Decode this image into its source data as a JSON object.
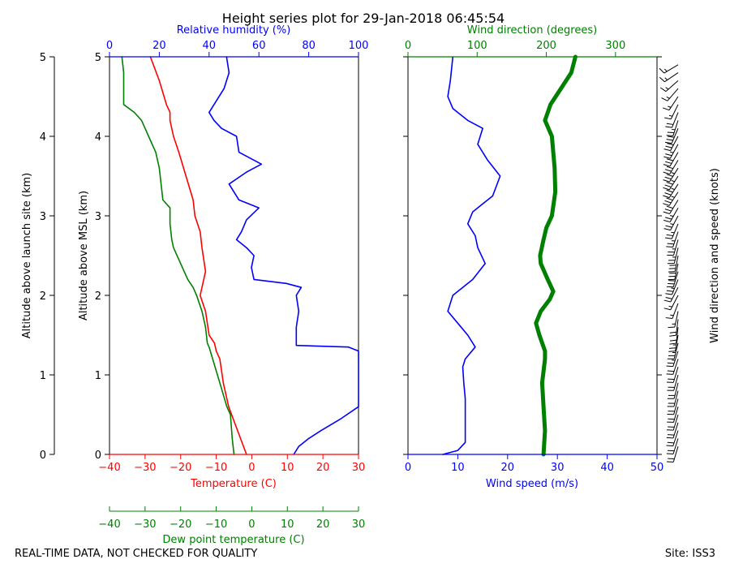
{
  "title": "Height series plot for 29-Jan-2018 06:45:54",
  "footer": {
    "left": "REAL-TIME DATA, NOT CHECKED FOR QUALITY",
    "right": "Site: ISS3"
  },
  "colors": {
    "temperature": "#ff0000",
    "dewpoint": "#008000",
    "humidity": "#0000ff",
    "windspeed": "#0000ff",
    "winddir": "#008000",
    "barbs": "#000000",
    "text": "#000000"
  },
  "axes": {
    "launch_alt_label": "Altitude above launch site (km)",
    "msl_alt_label": "Altitude above MSL (km)",
    "alt_ticks": [
      "0",
      "1",
      "2",
      "3",
      "4",
      "5"
    ],
    "temp_label": "Temperature (C)",
    "dew_label": "Dew point temperature (C)",
    "rh_label": "Relative humidity (%)",
    "ws_label": "Wind speed (m/s)",
    "wd_label": "Wind direction (degrees)",
    "barb_label": "Wind direction and speed (knots)",
    "temp_ticks": [
      "−40",
      "−30",
      "−20",
      "−10",
      "0",
      "10",
      "20",
      "30"
    ],
    "dew_ticks": [
      "−40",
      "−30",
      "−20",
      "−10",
      "0",
      "10",
      "20",
      "30"
    ],
    "rh_ticks": [
      "0",
      "20",
      "40",
      "60",
      "80",
      "100"
    ],
    "ws_ticks": [
      "0",
      "10",
      "20",
      "30",
      "40",
      "50"
    ],
    "wd_ticks": [
      "0",
      "100",
      "200",
      "300"
    ]
  },
  "chart_data": [
    {
      "type": "line",
      "title": "Thermodynamic profile",
      "ylabel": "Altitude above MSL (km)",
      "ylim": [
        0,
        5
      ],
      "series": [
        {
          "name": "Temperature (C)",
          "xlim": [
            -40,
            30
          ],
          "points": [
            [
              -1.5,
              0
            ],
            [
              -4,
              0.3
            ],
            [
              -6.5,
              0.6
            ],
            [
              -8,
              0.9
            ],
            [
              -9,
              1.2
            ],
            [
              -10,
              1.3
            ],
            [
              -10.5,
              1.4
            ],
            [
              -12,
              1.5
            ],
            [
              -13,
              1.8
            ],
            [
              -14.5,
              2
            ],
            [
              -13,
              2.3
            ],
            [
              -14,
              2.6
            ],
            [
              -14.5,
              2.8
            ],
            [
              -16,
              3
            ],
            [
              -16.5,
              3.2
            ],
            [
              -18.5,
              3.5
            ],
            [
              -20.5,
              3.8
            ],
            [
              -22,
              4
            ],
            [
              -23,
              4.2
            ],
            [
              -23,
              4.3
            ],
            [
              -24,
              4.4
            ],
            [
              -26,
              4.7
            ],
            [
              -28.5,
              5
            ]
          ]
        },
        {
          "name": "Dew point temperature (C)",
          "xlim": [
            -40,
            30
          ],
          "points": [
            [
              -5,
              0
            ],
            [
              -5.5,
              0.2
            ],
            [
              -6,
              0.5
            ],
            [
              -7,
              0.6
            ],
            [
              -9,
              0.9
            ],
            [
              -11,
              1.2
            ],
            [
              -12,
              1.35
            ],
            [
              -12.5,
              1.4
            ],
            [
              -13,
              1.6
            ],
            [
              -14,
              1.8
            ],
            [
              -15.5,
              2
            ],
            [
              -16.5,
              2.1
            ],
            [
              -18,
              2.2
            ],
            [
              -20,
              2.4
            ],
            [
              -22,
              2.6
            ],
            [
              -22.5,
              2.7
            ],
            [
              -23,
              2.9
            ],
            [
              -23,
              3.1
            ],
            [
              -25,
              3.2
            ],
            [
              -26,
              3.6
            ],
            [
              -27,
              3.8
            ],
            [
              -29,
              4
            ],
            [
              -30,
              4.1
            ],
            [
              -31,
              4.2
            ],
            [
              -33,
              4.3
            ],
            [
              -36,
              4.4
            ],
            [
              -36,
              4.8
            ],
            [
              -36.5,
              5
            ]
          ]
        },
        {
          "name": "Relative humidity (%)",
          "xlim": [
            0,
            100
          ],
          "points": [
            [
              74,
              0
            ],
            [
              76,
              0.1
            ],
            [
              80,
              0.2
            ],
            [
              85,
              0.3
            ],
            [
              93,
              0.45
            ],
            [
              100,
              0.6
            ],
            [
              100,
              1.3
            ],
            [
              96,
              1.35
            ],
            [
              75,
              1.37
            ],
            [
              75,
              1.6
            ],
            [
              76,
              1.8
            ],
            [
              75,
              2
            ],
            [
              77,
              2.1
            ],
            [
              71,
              2.15
            ],
            [
              58,
              2.2
            ],
            [
              57,
              2.35
            ],
            [
              58,
              2.5
            ],
            [
              55,
              2.6
            ],
            [
              51,
              2.7
            ],
            [
              53,
              2.8
            ],
            [
              55,
              2.95
            ],
            [
              60,
              3.1
            ],
            [
              52,
              3.2
            ],
            [
              48,
              3.4
            ],
            [
              55,
              3.55
            ],
            [
              61,
              3.65
            ],
            [
              58,
              3.7
            ],
            [
              52,
              3.8
            ],
            [
              51,
              4
            ],
            [
              45,
              4.1
            ],
            [
              42,
              4.2
            ],
            [
              40,
              4.3
            ],
            [
              42,
              4.4
            ],
            [
              46,
              4.6
            ],
            [
              48,
              4.8
            ],
            [
              47,
              5
            ]
          ]
        }
      ]
    },
    {
      "type": "line",
      "title": "Wind profile",
      "ylim": [
        0,
        5
      ],
      "series": [
        {
          "name": "Wind speed (m/s)",
          "xlim": [
            0,
            50
          ],
          "points": [
            [
              7,
              0
            ],
            [
              10,
              0.05
            ],
            [
              11.5,
              0.15
            ],
            [
              11.5,
              0.3
            ],
            [
              11.5,
              0.5
            ],
            [
              11.5,
              0.7
            ],
            [
              11.2,
              0.9
            ],
            [
              11,
              1.1
            ],
            [
              11.5,
              1.2
            ],
            [
              13.5,
              1.35
            ],
            [
              12,
              1.5
            ],
            [
              10,
              1.65
            ],
            [
              8,
              1.8
            ],
            [
              9,
              2
            ],
            [
              11,
              2.1
            ],
            [
              13,
              2.2
            ],
            [
              15.5,
              2.4
            ],
            [
              14,
              2.6
            ],
            [
              13.5,
              2.75
            ],
            [
              12,
              2.9
            ],
            [
              13,
              3.05
            ],
            [
              15,
              3.15
            ],
            [
              17,
              3.25
            ],
            [
              18.5,
              3.5
            ],
            [
              16,
              3.7
            ],
            [
              14,
              3.9
            ],
            [
              15,
              4.1
            ],
            [
              12,
              4.2
            ],
            [
              9,
              4.35
            ],
            [
              8,
              4.5
            ],
            [
              8.5,
              4.7
            ],
            [
              9,
              5
            ]
          ]
        },
        {
          "name": "Wind direction (degrees)",
          "xlim": [
            0,
            360
          ],
          "points": [
            [
              196,
              0
            ],
            [
              198,
              0.3
            ],
            [
              196,
              0.6
            ],
            [
              194,
              0.9
            ],
            [
              198,
              1.2
            ],
            [
              198,
              1.3
            ],
            [
              190,
              1.5
            ],
            [
              185,
              1.65
            ],
            [
              192,
              1.8
            ],
            [
              205,
              1.95
            ],
            [
              210,
              2.05
            ],
            [
              202,
              2.2
            ],
            [
              192,
              2.4
            ],
            [
              191,
              2.5
            ],
            [
              196,
              2.7
            ],
            [
              200,
              2.85
            ],
            [
              208,
              3
            ],
            [
              213,
              3.3
            ],
            [
              212,
              3.6
            ],
            [
              210,
              3.8
            ],
            [
              208,
              4
            ],
            [
              198,
              4.2
            ],
            [
              206,
              4.4
            ],
            [
              221,
              4.6
            ],
            [
              236,
              4.8
            ],
            [
              242,
              5
            ]
          ]
        }
      ]
    }
  ]
}
